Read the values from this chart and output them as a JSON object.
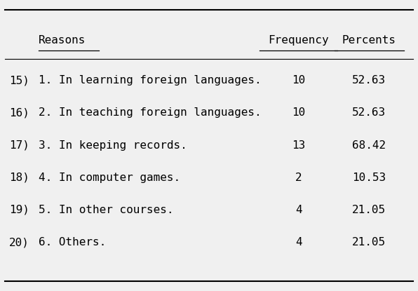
{
  "row_numbers": [
    "15)",
    "16)",
    "17)",
    "18)",
    "19)",
    "20)"
  ],
  "reasons": [
    "1. In learning foreign languages.",
    "2. In teaching foreign languages.",
    "3. In keeping records.",
    "4. In computer games.",
    "5. In other courses.",
    "6. Others."
  ],
  "frequencies": [
    "10",
    "10",
    "13",
    "2",
    "4",
    "4"
  ],
  "percents": [
    "52.63",
    "52.63",
    "68.42",
    "10.53",
    "21.05",
    "21.05"
  ],
  "header_reasons": "Reasons",
  "header_frequency": "Frequency",
  "header_percents": "Percents",
  "bg_color": "#f0f0f0",
  "font_color": "#000000",
  "font_size": 11.5,
  "header_font_size": 11.5
}
